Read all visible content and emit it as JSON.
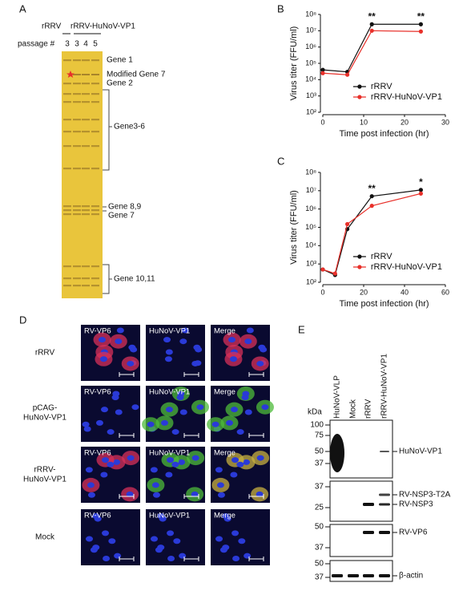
{
  "panel_labels": [
    "A",
    "B",
    "C",
    "D",
    "E"
  ],
  "gel": {
    "headers": [
      "rRRV",
      "rRRV-HuNoV-VP1"
    ],
    "passage_label": "passage #",
    "passages": [
      "3",
      "3",
      "4",
      "5"
    ],
    "annotations": [
      "Gene 1",
      "Modified Gene 7",
      "Gene 2",
      "Gene3-6",
      "Gene 8,9",
      "Gene 7",
      "Gene 10,11"
    ]
  },
  "chart_data": [
    {
      "type": "line",
      "x_label": "Time post infection (hr)",
      "y_label": "Virus titer (FFU/ml)",
      "x": [
        0,
        6,
        12,
        24
      ],
      "xlim": [
        0,
        30
      ],
      "xticks": [
        0,
        10,
        20,
        30
      ],
      "ylim": [
        100,
        100000000
      ],
      "log_y": true,
      "yticks": [
        {
          "value": 100,
          "label": "10²"
        },
        {
          "value": 1000,
          "label": "10³"
        },
        {
          "value": 10000,
          "label": "10⁴"
        },
        {
          "value": 100000,
          "label": "10⁵"
        },
        {
          "value": 1000000,
          "label": "10⁶"
        },
        {
          "value": 10000000,
          "label": "10⁷"
        },
        {
          "value": 100000000,
          "label": "10⁸"
        }
      ],
      "legend": "lower right",
      "series": [
        {
          "name": "rRRV",
          "color": "#111111",
          "values": [
            40000,
            30000,
            25000000,
            25000000
          ]
        },
        {
          "name": "rRRV-HuNoV-VP1",
          "color": "#e8302a",
          "values": [
            25000,
            20000,
            10000000,
            9000000
          ]
        }
      ],
      "annotations": [
        {
          "x": 12,
          "text": "**"
        },
        {
          "x": 24,
          "text": "**"
        }
      ]
    },
    {
      "type": "line",
      "x_label": "Time post infection (hr)",
      "y_label": "Virus titer (FFU/ml)",
      "x": [
        0,
        6,
        12,
        24,
        48
      ],
      "xlim": [
        0,
        60
      ],
      "xticks": [
        0,
        20,
        40,
        60
      ],
      "ylim": [
        100,
        100000000
      ],
      "log_y": true,
      "yticks": [
        {
          "value": 100,
          "label": "10²"
        },
        {
          "value": 1000,
          "label": "10³"
        },
        {
          "value": 10000,
          "label": "10⁴"
        },
        {
          "value": 100000,
          "label": "10⁵"
        },
        {
          "value": 1000000,
          "label": "10⁶"
        },
        {
          "value": 10000000,
          "label": "10⁷"
        },
        {
          "value": 100000000,
          "label": "10⁸"
        }
      ],
      "legend": "lower right",
      "series": [
        {
          "name": "rRRV",
          "color": "#111111",
          "values": [
            500,
            250,
            80000,
            5000000,
            11000000
          ]
        },
        {
          "name": "rRRV-HuNoV-VP1",
          "color": "#e8302a",
          "values": [
            500,
            300,
            150000,
            1500000,
            7000000
          ]
        }
      ],
      "annotations": [
        {
          "x": 24,
          "text": "**"
        },
        {
          "x": 48,
          "text": "*"
        }
      ]
    }
  ],
  "micrographs": {
    "columns": [
      "RV-VP6",
      "HuNoV-VP1",
      "Merge"
    ],
    "rows": [
      [
        "rRRV"
      ],
      [
        "pCAG-",
        "HuNoV-VP1"
      ],
      [
        "rRRV-",
        "HuNoV-VP1"
      ],
      [
        "Mock"
      ]
    ]
  },
  "western": {
    "lanes": [
      "HuNoV-VLP",
      "Mock",
      "rRRV",
      "rRRV-HuNoV-VP1"
    ],
    "unit": "kDa",
    "blots": [
      {
        "markers": [
          "100",
          "75",
          "50",
          "37"
        ],
        "bands": [
          "HuNoV-VP1"
        ]
      },
      {
        "markers": [
          "37",
          "25"
        ],
        "bands": [
          "RV-NSP3-T2A",
          "RV-NSP3"
        ]
      },
      {
        "markers": [
          "50",
          "37"
        ],
        "bands": [
          "RV-VP6"
        ]
      },
      {
        "markers": [
          "50",
          "37"
        ],
        "bands": [
          "β-actin"
        ]
      }
    ]
  }
}
